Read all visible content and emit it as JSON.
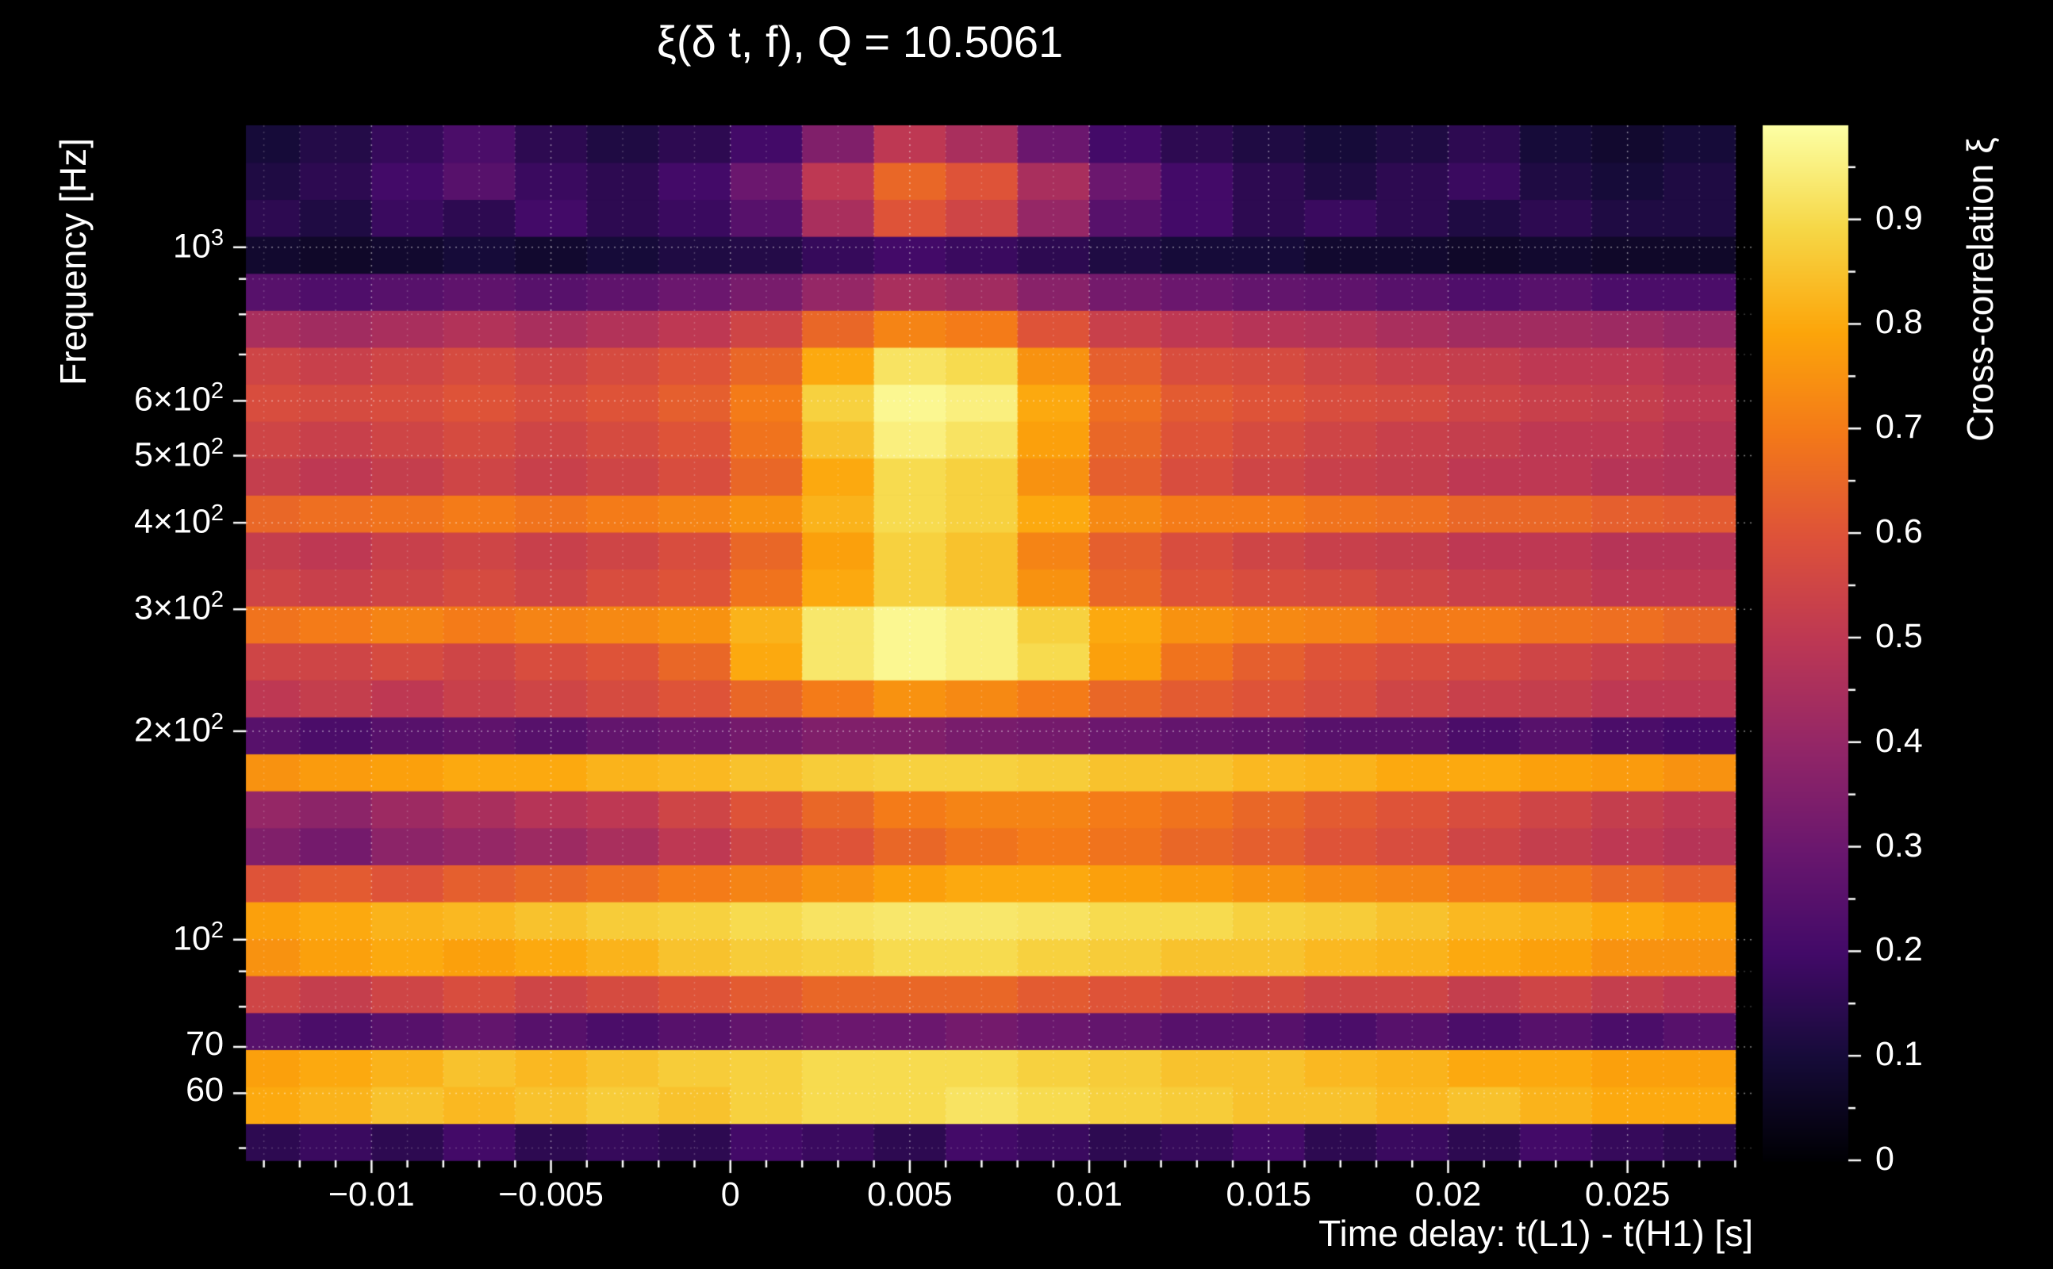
{
  "colors": {
    "background": "#000000",
    "text": "#ffffff",
    "grid": "#ffffff"
  },
  "chart_data": {
    "type": "heatmap",
    "title": "ξ(δ t, f), Q = 10.5061",
    "xlabel": "Time delay: t(L1) - t(H1) [s]",
    "ylabel": "Frequency [Hz]",
    "x_range": [
      -0.0135,
      0.0285
    ],
    "y_range": [
      48,
      1500
    ],
    "y_scale": "log",
    "grid": "dotted-white",
    "legend": "none",
    "x_ticks": [
      {
        "v": -0.01,
        "label": "−0.01"
      },
      {
        "v": -0.005,
        "label": "−0.005"
      },
      {
        "v": 0,
        "label": "0"
      },
      {
        "v": 0.005,
        "label": "0.005"
      },
      {
        "v": 0.01,
        "label": "0.01"
      },
      {
        "v": 0.015,
        "label": "0.015"
      },
      {
        "v": 0.02,
        "label": "0.02"
      },
      {
        "v": 0.025,
        "label": "0.025"
      }
    ],
    "y_ticks": [
      {
        "v": 60,
        "text": "60",
        "sup": ""
      },
      {
        "v": 70,
        "text": "70",
        "sup": ""
      },
      {
        "v": 100,
        "text": "10",
        "sup": "2"
      },
      {
        "v": 200,
        "text": "2×10",
        "sup": "2"
      },
      {
        "v": 300,
        "text": "3×10",
        "sup": "2"
      },
      {
        "v": 400,
        "text": "4×10",
        "sup": "2"
      },
      {
        "v": 500,
        "text": "5×10",
        "sup": "2"
      },
      {
        "v": 600,
        "text": "6×10",
        "sup": "2"
      },
      {
        "v": 1000,
        "text": "10",
        "sup": "3"
      }
    ],
    "colorbar": {
      "label": "Cross-correlation ξ",
      "min": 0,
      "max": 0.99,
      "position": "right",
      "ticks": [
        {
          "v": 0,
          "label": "0"
        },
        {
          "v": 0.1,
          "label": "0.1"
        },
        {
          "v": 0.2,
          "label": "0.2"
        },
        {
          "v": 0.3,
          "label": "0.3"
        },
        {
          "v": 0.4,
          "label": "0.4"
        },
        {
          "v": 0.5,
          "label": "0.5"
        },
        {
          "v": 0.6,
          "label": "0.6"
        },
        {
          "v": 0.7,
          "label": "0.7"
        },
        {
          "v": 0.8,
          "label": "0.8"
        },
        {
          "v": 0.9,
          "label": "0.9"
        }
      ]
    },
    "colormap": {
      "name": "inferno",
      "anchors": [
        [
          0.0,
          "#000004"
        ],
        [
          0.1,
          "#160b39"
        ],
        [
          0.2,
          "#420a68"
        ],
        [
          0.3,
          "#6a176e"
        ],
        [
          0.4,
          "#932667"
        ],
        [
          0.5,
          "#bc3754"
        ],
        [
          0.6,
          "#dd513a"
        ],
        [
          0.7,
          "#f37819"
        ],
        [
          0.8,
          "#fca50a"
        ],
        [
          0.9,
          "#f6d746"
        ],
        [
          1.0,
          "#fcffa4"
        ]
      ]
    },
    "x": [
      -0.013,
      -0.011,
      -0.009,
      -0.007,
      -0.005,
      -0.003,
      -0.001,
      0.001,
      0.003,
      0.005,
      0.007,
      0.009,
      0.011,
      0.013,
      0.015,
      0.017,
      0.019,
      0.021,
      0.023,
      0.025,
      0.027
    ],
    "y": [
      52,
      59,
      66,
      75,
      85,
      96,
      108,
      122,
      138,
      156,
      176,
      199,
      225,
      254,
      287,
      325,
      367,
      414,
      468,
      529,
      598,
      675,
      763,
      862,
      974,
      1101,
      1244,
      1406
    ],
    "values": [
      [
        0.15,
        0.18,
        0.15,
        0.2,
        0.15,
        0.17,
        0.15,
        0.2,
        0.18,
        0.15,
        0.2,
        0.18,
        0.15,
        0.17,
        0.2,
        0.15,
        0.18,
        0.15,
        0.2,
        0.17,
        0.15
      ],
      [
        0.8,
        0.82,
        0.85,
        0.83,
        0.85,
        0.87,
        0.85,
        0.88,
        0.9,
        0.9,
        0.92,
        0.9,
        0.88,
        0.87,
        0.85,
        0.85,
        0.83,
        0.85,
        0.82,
        0.8,
        0.8
      ],
      [
        0.78,
        0.8,
        0.82,
        0.85,
        0.83,
        0.85,
        0.87,
        0.88,
        0.9,
        0.9,
        0.9,
        0.88,
        0.87,
        0.85,
        0.85,
        0.83,
        0.82,
        0.8,
        0.8,
        0.78,
        0.78
      ],
      [
        0.25,
        0.22,
        0.25,
        0.28,
        0.25,
        0.22,
        0.25,
        0.28,
        0.3,
        0.3,
        0.32,
        0.3,
        0.28,
        0.25,
        0.25,
        0.22,
        0.25,
        0.22,
        0.25,
        0.22,
        0.25
      ],
      [
        0.55,
        0.52,
        0.55,
        0.58,
        0.55,
        0.57,
        0.6,
        0.62,
        0.65,
        0.65,
        0.65,
        0.62,
        0.6,
        0.58,
        0.57,
        0.55,
        0.55,
        0.52,
        0.55,
        0.52,
        0.5
      ],
      [
        0.75,
        0.78,
        0.8,
        0.78,
        0.8,
        0.82,
        0.85,
        0.87,
        0.88,
        0.9,
        0.9,
        0.88,
        0.87,
        0.85,
        0.85,
        0.83,
        0.82,
        0.8,
        0.78,
        0.75,
        0.75
      ],
      [
        0.78,
        0.8,
        0.82,
        0.83,
        0.85,
        0.87,
        0.88,
        0.9,
        0.92,
        0.93,
        0.93,
        0.92,
        0.9,
        0.9,
        0.88,
        0.87,
        0.85,
        0.83,
        0.82,
        0.8,
        0.78
      ],
      [
        0.6,
        0.62,
        0.6,
        0.63,
        0.65,
        0.67,
        0.7,
        0.72,
        0.75,
        0.78,
        0.8,
        0.8,
        0.78,
        0.77,
        0.75,
        0.73,
        0.72,
        0.7,
        0.68,
        0.65,
        0.63
      ],
      [
        0.35,
        0.32,
        0.38,
        0.4,
        0.42,
        0.45,
        0.5,
        0.55,
        0.6,
        0.65,
        0.68,
        0.7,
        0.68,
        0.65,
        0.63,
        0.6,
        0.58,
        0.55,
        0.52,
        0.5,
        0.48
      ],
      [
        0.4,
        0.38,
        0.42,
        0.45,
        0.48,
        0.5,
        0.55,
        0.6,
        0.65,
        0.7,
        0.72,
        0.72,
        0.7,
        0.68,
        0.65,
        0.62,
        0.6,
        0.58,
        0.55,
        0.52,
        0.5
      ],
      [
        0.75,
        0.77,
        0.78,
        0.8,
        0.8,
        0.82,
        0.83,
        0.85,
        0.87,
        0.88,
        0.88,
        0.87,
        0.85,
        0.85,
        0.83,
        0.82,
        0.8,
        0.8,
        0.78,
        0.77,
        0.75
      ],
      [
        0.25,
        0.22,
        0.25,
        0.27,
        0.25,
        0.28,
        0.3,
        0.32,
        0.35,
        0.35,
        0.33,
        0.32,
        0.3,
        0.28,
        0.27,
        0.25,
        0.25,
        0.22,
        0.25,
        0.22,
        0.2
      ],
      [
        0.5,
        0.52,
        0.5,
        0.53,
        0.55,
        0.57,
        0.6,
        0.65,
        0.7,
        0.75,
        0.73,
        0.7,
        0.65,
        0.62,
        0.6,
        0.58,
        0.55,
        0.53,
        0.52,
        0.5,
        0.5
      ],
      [
        0.55,
        0.55,
        0.57,
        0.55,
        0.58,
        0.6,
        0.65,
        0.8,
        0.93,
        0.97,
        0.95,
        0.9,
        0.78,
        0.68,
        0.63,
        0.6,
        0.58,
        0.57,
        0.55,
        0.53,
        0.52
      ],
      [
        0.68,
        0.7,
        0.72,
        0.7,
        0.72,
        0.73,
        0.75,
        0.82,
        0.93,
        0.97,
        0.95,
        0.88,
        0.8,
        0.75,
        0.73,
        0.72,
        0.7,
        0.7,
        0.68,
        0.67,
        0.65
      ],
      [
        0.55,
        0.53,
        0.55,
        0.57,
        0.55,
        0.58,
        0.6,
        0.68,
        0.8,
        0.88,
        0.85,
        0.75,
        0.65,
        0.6,
        0.58,
        0.57,
        0.55,
        0.53,
        0.52,
        0.5,
        0.5
      ],
      [
        0.52,
        0.5,
        0.53,
        0.55,
        0.53,
        0.55,
        0.58,
        0.65,
        0.78,
        0.88,
        0.85,
        0.72,
        0.63,
        0.58,
        0.55,
        0.53,
        0.52,
        0.5,
        0.5,
        0.48,
        0.48
      ],
      [
        0.65,
        0.67,
        0.68,
        0.7,
        0.68,
        0.7,
        0.72,
        0.75,
        0.82,
        0.9,
        0.88,
        0.8,
        0.73,
        0.7,
        0.7,
        0.68,
        0.67,
        0.65,
        0.65,
        0.63,
        0.62
      ],
      [
        0.52,
        0.5,
        0.52,
        0.55,
        0.53,
        0.55,
        0.58,
        0.65,
        0.8,
        0.9,
        0.88,
        0.75,
        0.63,
        0.58,
        0.55,
        0.53,
        0.52,
        0.5,
        0.5,
        0.48,
        0.47
      ],
      [
        0.55,
        0.53,
        0.55,
        0.57,
        0.55,
        0.57,
        0.6,
        0.68,
        0.85,
        0.95,
        0.92,
        0.78,
        0.65,
        0.6,
        0.57,
        0.55,
        0.53,
        0.52,
        0.5,
        0.5,
        0.48
      ],
      [
        0.58,
        0.57,
        0.58,
        0.6,
        0.58,
        0.6,
        0.63,
        0.7,
        0.88,
        0.97,
        0.95,
        0.8,
        0.67,
        0.62,
        0.6,
        0.58,
        0.57,
        0.55,
        0.53,
        0.52,
        0.5
      ],
      [
        0.55,
        0.53,
        0.55,
        0.57,
        0.55,
        0.57,
        0.6,
        0.65,
        0.8,
        0.92,
        0.9,
        0.75,
        0.63,
        0.58,
        0.57,
        0.55,
        0.53,
        0.52,
        0.5,
        0.5,
        0.48
      ],
      [
        0.45,
        0.43,
        0.45,
        0.47,
        0.45,
        0.47,
        0.5,
        0.55,
        0.65,
        0.72,
        0.7,
        0.6,
        0.53,
        0.5,
        0.48,
        0.47,
        0.45,
        0.43,
        0.43,
        0.42,
        0.4
      ],
      [
        0.25,
        0.23,
        0.25,
        0.27,
        0.25,
        0.27,
        0.3,
        0.33,
        0.4,
        0.45,
        0.43,
        0.37,
        0.32,
        0.3,
        0.28,
        0.27,
        0.25,
        0.23,
        0.25,
        0.22,
        0.22
      ],
      [
        0.08,
        0.07,
        0.08,
        0.1,
        0.08,
        0.1,
        0.12,
        0.13,
        0.17,
        0.2,
        0.18,
        0.15,
        0.12,
        0.1,
        0.1,
        0.08,
        0.08,
        0.07,
        0.08,
        0.07,
        0.07
      ],
      [
        0.15,
        0.12,
        0.18,
        0.15,
        0.2,
        0.15,
        0.18,
        0.25,
        0.45,
        0.6,
        0.55,
        0.4,
        0.25,
        0.2,
        0.15,
        0.18,
        0.15,
        0.12,
        0.15,
        0.12,
        0.12
      ],
      [
        0.12,
        0.15,
        0.2,
        0.25,
        0.18,
        0.15,
        0.2,
        0.3,
        0.5,
        0.65,
        0.6,
        0.45,
        0.3,
        0.2,
        0.15,
        0.12,
        0.15,
        0.18,
        0.12,
        0.1,
        0.12
      ],
      [
        0.1,
        0.13,
        0.17,
        0.22,
        0.15,
        0.12,
        0.15,
        0.2,
        0.35,
        0.5,
        0.45,
        0.3,
        0.2,
        0.15,
        0.12,
        0.1,
        0.12,
        0.15,
        0.1,
        0.08,
        0.1
      ]
    ]
  }
}
